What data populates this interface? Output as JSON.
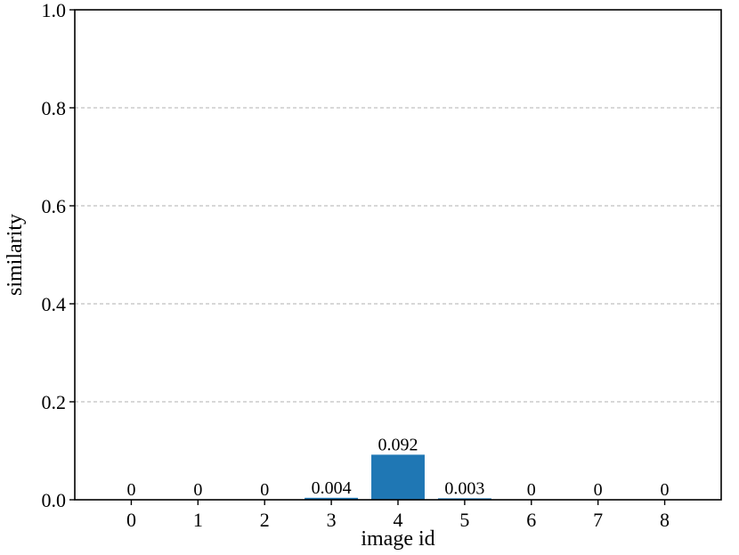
{
  "chart_data": {
    "type": "bar",
    "categories": [
      "0",
      "1",
      "2",
      "3",
      "4",
      "5",
      "6",
      "7",
      "8"
    ],
    "values": [
      0,
      0,
      0,
      0.004,
      0.092,
      0.003,
      0,
      0,
      0
    ],
    "value_labels": [
      "0",
      "0",
      "0",
      "0.004",
      "0.092",
      "0.003",
      "0",
      "0",
      "0"
    ],
    "xlabel": "image id",
    "ylabel": "similarity",
    "ylim": [
      0,
      1.0
    ],
    "yticks": [
      "0.0",
      "0.2",
      "0.4",
      "0.6",
      "0.8",
      "1.0"
    ],
    "grid": "horizontal dashed at y ticks",
    "bar_color": "#1f77b4",
    "grid_color": "#b0b0b0"
  }
}
